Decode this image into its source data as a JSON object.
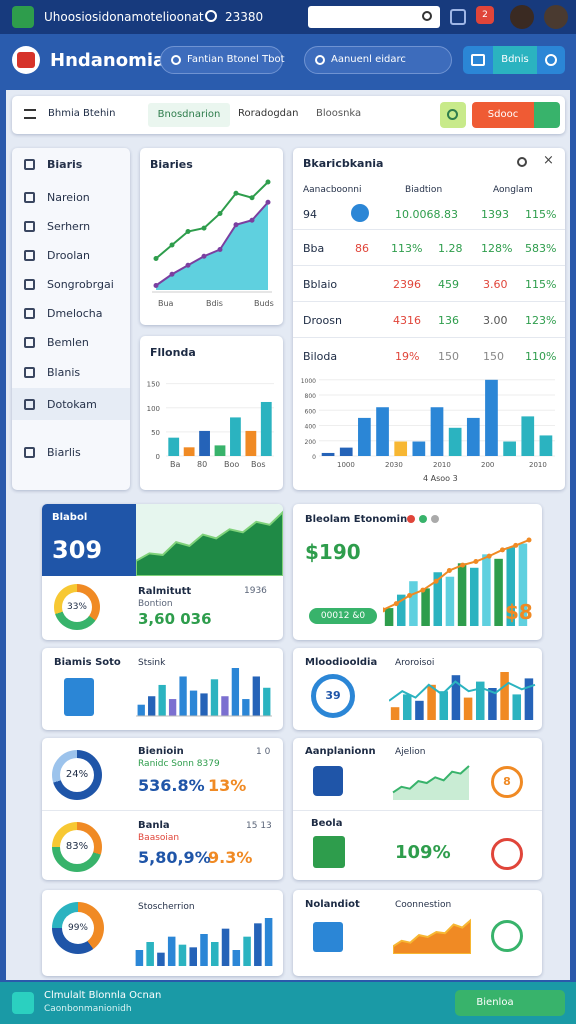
{
  "topbar": {
    "title": "Uhoosiosidonamotelioonat",
    "counter": "23380",
    "badge": "2"
  },
  "header": {
    "brand": "Hndanomia",
    "search1": "Fantian Btonel Tbot",
    "search2": "Aanuenl eidarc",
    "button": "Bdnis"
  },
  "filter": {
    "label": "Bhmia Btehin",
    "tabs": [
      "Bnosdnarion",
      "Roradogdan",
      "Bloosnka"
    ],
    "button": "Sdooc"
  },
  "sidebar": {
    "title": "Biaris",
    "items": [
      "Nareion",
      "Serhern",
      "Droolan",
      "Songrobrgai",
      "Dmelocha",
      "Bemlen",
      "Blanis",
      "Dotokam",
      "Biarlis"
    ]
  },
  "line_card": {
    "title": "Biaries",
    "x_labels": [
      "Bua",
      "Bdis",
      "Buds"
    ],
    "lines": [
      {
        "color": "#2e9d4c",
        "values": [
          28,
          40,
          52,
          55,
          68,
          86,
          82,
          96
        ]
      },
      {
        "color": "#7b3fa0",
        "values": [
          4,
          14,
          22,
          30,
          36,
          58,
          62,
          78
        ]
      }
    ]
  },
  "bar_card": {
    "title": "Fllonda",
    "ylim": [
      0,
      170
    ],
    "yticks": [
      0,
      50,
      100,
      150
    ],
    "x_labels": [
      "Ba",
      "80",
      "Boo",
      "Bos"
    ],
    "values": [
      38,
      18,
      52,
      22,
      80,
      52,
      112
    ],
    "colors": [
      "#2bb3c0",
      "#f08a24",
      "#2563b8",
      "#38b36b",
      "#2bb3c0",
      "#f08a24",
      "#2bb3c0"
    ]
  },
  "table": {
    "title": "Bkaricbkania",
    "columns": [
      "Aanacboonni",
      "Biadtion",
      "Aonglam"
    ],
    "rows": [
      [
        "94",
        "10.0068.83",
        "1393",
        "115%"
      ],
      [
        "Bba",
        "86",
        "113%",
        "1.28",
        "128%",
        "583%"
      ],
      [
        "Bblaio",
        "2396",
        "459",
        "3.60",
        "115%"
      ],
      [
        "Droosn",
        "4316",
        "136",
        "3.00",
        "123%"
      ],
      [
        "Biloda",
        "19%",
        "150",
        "150",
        "110%"
      ]
    ]
  },
  "table_chart": {
    "ylim": [
      0,
      1050
    ],
    "yticks": [
      0,
      200,
      400,
      600,
      800,
      1000
    ],
    "values": [
      40,
      110,
      500,
      640,
      190,
      190,
      640,
      370,
      500,
      1000,
      190,
      520,
      270
    ],
    "colors": [
      "#2563b8",
      "#2563b8",
      "#2b86d6",
      "#2b86d6",
      "#f7b733",
      "#2b86d6",
      "#2b86d6",
      "#2bb3c0",
      "#2b86d6",
      "#2b86d6",
      "#2bb3c0",
      "#2bb3c0",
      "#2bb3c0"
    ],
    "x_labels": [
      "1000",
      "2030",
      "2010",
      "200",
      "2010"
    ],
    "note": "4 Asoo 3"
  },
  "kpi1": {
    "title": "Blabol",
    "value": "309",
    "donut": "33%",
    "name": "Ralmitutt",
    "sub": "Bontion",
    "amount": "3,60 036",
    "side": "1936",
    "area": [
      20,
      30,
      28,
      45,
      40,
      55,
      50,
      62,
      58,
      72,
      68,
      85
    ]
  },
  "kpi2": {
    "title": "Bleolam Etonomin",
    "value": "$190",
    "pill": "00012 &0",
    "side": "$8",
    "bars": [
      20,
      35,
      50,
      42,
      60,
      55,
      70,
      65,
      80,
      75,
      88,
      92
    ],
    "line": [
      18,
      25,
      34,
      40,
      50,
      62,
      68,
      72,
      78,
      85,
      90,
      96
    ]
  },
  "card3": {
    "title": "Biamis Soto",
    "sub": "Stsink",
    "bars": [
      20,
      35,
      55,
      30,
      70,
      45,
      40,
      65,
      35,
      85,
      30,
      70,
      50
    ],
    "colors": [
      "#2b86d6",
      "#2563b8",
      "#2bb3c0",
      "#7b6fd0",
      "#2b86d6"
    ]
  },
  "card4": {
    "title": "Mloodiooldia",
    "sub": "Aroroisoi",
    "donut": "39",
    "bars": [
      20,
      40,
      30,
      55,
      45,
      70,
      35,
      60,
      50,
      75,
      40,
      65
    ],
    "line": [
      30,
      45,
      35,
      55,
      40,
      60,
      45,
      50,
      42,
      58,
      48,
      55
    ],
    "colors": [
      "#f08a24",
      "#2bb3c0",
      "#2563b8"
    ]
  },
  "card5": {
    "top": {
      "title": "Bienioin",
      "sub": "Ranidc Sonn 8379",
      "value": "536.8%",
      "delta": "13%",
      "corner": "1 0",
      "donut": "24%"
    },
    "bottom": {
      "title": "Banla",
      "sub": "Baasoian",
      "value": "5,80,9%",
      "delta": "9.3%",
      "corner": "15 13",
      "donut": "83%"
    }
  },
  "card6": {
    "top": {
      "title": "Aanplanionn",
      "sub": "Ajelion",
      "badge": "8",
      "line": [
        20,
        35,
        30,
        50,
        45,
        60,
        52,
        75,
        70,
        90
      ]
    },
    "bottom": {
      "title": "Beola",
      "value": "109%"
    }
  },
  "card7": {
    "donut": "99%",
    "title": "Stoscherrion",
    "bars": [
      30,
      45,
      25,
      55,
      40,
      35,
      60,
      45,
      70,
      30,
      55,
      80,
      90
    ],
    "colors": [
      "#2b86d6",
      "#2bb3c0",
      "#2563b8"
    ]
  },
  "card8": {
    "title": "Nolandiot",
    "sub": "Coonnestion",
    "area": [
      20,
      35,
      30,
      50,
      45,
      58,
      55,
      78,
      70,
      90
    ]
  },
  "footer": {
    "title": "Clmulalt Blonnla Ocnan",
    "sub": "Caonbonmanionidh",
    "button": "Bienloa"
  }
}
